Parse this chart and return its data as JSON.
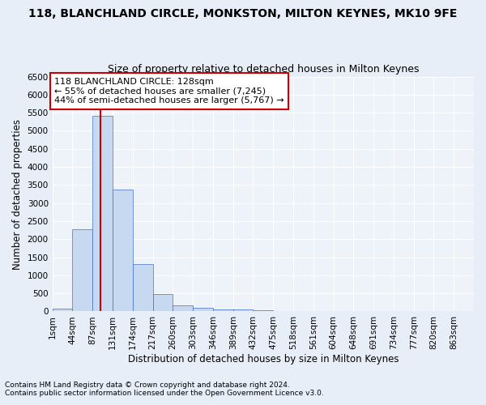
{
  "title": "118, BLANCHLAND CIRCLE, MONKSTON, MILTON KEYNES, MK10 9FE",
  "subtitle": "Size of property relative to detached houses in Milton Keynes",
  "xlabel": "Distribution of detached houses by size in Milton Keynes",
  "ylabel": "Number of detached properties",
  "footnote1": "Contains HM Land Registry data © Crown copyright and database right 2024.",
  "footnote2": "Contains public sector information licensed under the Open Government Licence v3.0.",
  "bar_values": [
    75,
    2275,
    5425,
    3375,
    1310,
    480,
    160,
    90,
    55,
    45,
    30,
    20,
    15,
    10,
    8,
    6,
    5,
    4,
    3,
    2
  ],
  "x_labels": [
    "1sqm",
    "44sqm",
    "87sqm",
    "131sqm",
    "174sqm",
    "217sqm",
    "260sqm",
    "303sqm",
    "346sqm",
    "389sqm",
    "432sqm",
    "475sqm",
    "518sqm",
    "561sqm",
    "604sqm",
    "648sqm",
    "691sqm",
    "734sqm",
    "777sqm",
    "820sqm",
    "863sqm"
  ],
  "bar_color": "#c6d9f0",
  "bar_edge_color": "#4472c4",
  "vline_x": 2.4,
  "vline_color": "#cc0000",
  "annotation_text": "118 BLANCHLAND CIRCLE: 128sqm\n← 55% of detached houses are smaller (7,245)\n44% of semi-detached houses are larger (5,767) →",
  "annotation_box_color": "#cc0000",
  "annotation_box_facecolor": "white",
  "ylim": [
    0,
    6500
  ],
  "yticks": [
    0,
    500,
    1000,
    1500,
    2000,
    2500,
    3000,
    3500,
    4000,
    4500,
    5000,
    5500,
    6000,
    6500
  ],
  "background_color": "#e8eef7",
  "plot_bg_color": "#eef2f9",
  "title_fontsize": 10,
  "subtitle_fontsize": 9,
  "annotation_fontsize": 8,
  "tick_fontsize": 7.5,
  "ylabel_fontsize": 8.5,
  "xlabel_fontsize": 8.5,
  "footnote_fontsize": 6.5
}
